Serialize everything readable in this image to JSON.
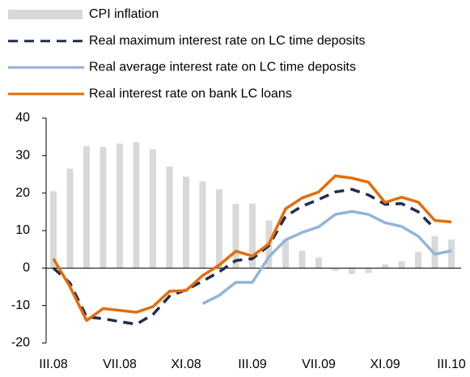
{
  "chart_data": {
    "type": "line",
    "categories": [
      "III.08",
      null,
      null,
      null,
      "VII.08",
      null,
      null,
      null,
      "XI.08",
      null,
      null,
      null,
      "III.09",
      null,
      null,
      null,
      "VII.09",
      null,
      null,
      null,
      "XI.09",
      null,
      null,
      null,
      "III.10"
    ],
    "series": [
      {
        "name": "CPI inflation",
        "type": "bar",
        "color": "#d9d9d9",
        "values": [
          20.5,
          26.5,
          32.5,
          32.3,
          33.2,
          33.6,
          31.7,
          27.1,
          24.4,
          23.1,
          21,
          17.1,
          17.2,
          12.7,
          7.6,
          4.6,
          2.8,
          -0.8,
          -1.6,
          -1.3,
          1.0,
          1.8,
          4.3,
          8.5,
          7.6
        ]
      },
      {
        "name": "Real maximum interest rate on LC time deposits",
        "type": "line",
        "dashed": true,
        "color": "#1f2d4e",
        "values": [
          0,
          -4,
          -13,
          -13.5,
          -14.3,
          -15,
          -12.4,
          -7.5,
          -5.8,
          -3.5,
          -1,
          2,
          2.5,
          6,
          13.8,
          16.5,
          18.3,
          20.3,
          21,
          19.5,
          17,
          17.2,
          15,
          10.5,
          null
        ]
      },
      {
        "name": "Real average interest rate on LC time deposits",
        "type": "line",
        "color": "#95b3d7",
        "values": [
          null,
          null,
          null,
          null,
          null,
          null,
          null,
          null,
          null,
          -9.5,
          -7.3,
          -3.8,
          -3.8,
          3,
          7.5,
          9.5,
          11,
          14.3,
          15.1,
          14.3,
          12.1,
          11.1,
          8.5,
          3.7,
          4.6
        ]
      },
      {
        "name": "Real interest rate on bank LC loans",
        "type": "line",
        "color": "#e46c0a",
        "values": [
          2.5,
          -5,
          -14,
          -10.8,
          -11.3,
          -11.8,
          -10.3,
          -6.2,
          -6,
          -2,
          0.8,
          4.5,
          3.2,
          6.5,
          15.8,
          18.7,
          20.3,
          24.6,
          24.0,
          22.9,
          17.5,
          18.9,
          17.6,
          12.7,
          12.3
        ]
      }
    ],
    "ylim": [
      -20,
      40
    ],
    "yticks": [
      -20,
      -10,
      0,
      10,
      20,
      30,
      40
    ],
    "grid": false
  }
}
